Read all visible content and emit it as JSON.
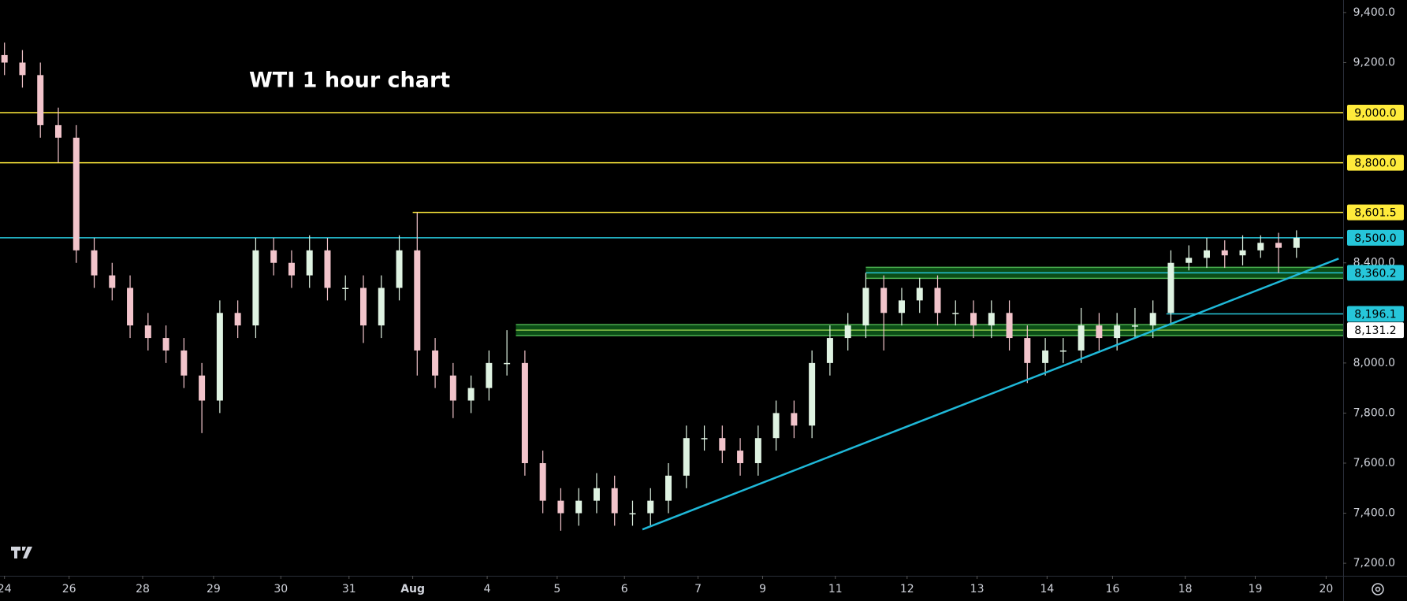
{
  "chart_data": {
    "type": "candlestick",
    "title": "WTI 1 hour chart",
    "up_color": "#dff3e2",
    "down_color": "#f2c4cb",
    "open": [
      9230,
      9200,
      9150,
      8950,
      8900,
      8450,
      8350,
      8300,
      8150,
      8100,
      8050,
      7950,
      7850,
      8200,
      8150,
      8450,
      8400,
      8350,
      8450,
      8300,
      8300,
      8150,
      8300,
      8450,
      8050,
      7950,
      7850,
      7900,
      8000,
      8000,
      7600,
      7450,
      7400,
      7450,
      7500,
      7400,
      7400,
      7450,
      7550,
      7700,
      7700,
      7650,
      7600,
      7700,
      7800,
      7750,
      8000,
      8100,
      8150,
      8300,
      8200,
      8250,
      8300,
      8200,
      8200,
      8150,
      8200,
      8100,
      8000,
      8050,
      8050,
      8150,
      8100,
      8150,
      8150,
      8200,
      8400,
      8420,
      8450,
      8430,
      8450,
      8480,
      8460
    ],
    "high": [
      9280,
      9250,
      9200,
      9020,
      8950,
      8500,
      8400,
      8350,
      8200,
      8150,
      8100,
      8000,
      8250,
      8250,
      8500,
      8500,
      8450,
      8510,
      8500,
      8350,
      8350,
      8350,
      8510,
      8601.5,
      8100,
      8000,
      7950,
      8050,
      8131.2,
      8050,
      7650,
      7500,
      7500,
      7560,
      7550,
      7450,
      7500,
      7600,
      7750,
      7750,
      7750,
      7700,
      7750,
      7850,
      7850,
      8050,
      8150,
      8200,
      8360.2,
      8350,
      8300,
      8340,
      8350,
      8250,
      8250,
      8250,
      8250,
      8150,
      8100,
      8100,
      8220,
      8200,
      8200,
      8220,
      8250,
      8450,
      8470,
      8500,
      8490,
      8510,
      8510,
      8520,
      8530
    ],
    "low": [
      9150,
      9100,
      8900,
      8800,
      8400,
      8300,
      8250,
      8100,
      8050,
      8000,
      7900,
      7720,
      7800,
      8100,
      8100,
      8350,
      8300,
      8300,
      8250,
      8250,
      8080,
      8100,
      8250,
      7950,
      7900,
      7780,
      7800,
      7850,
      7950,
      7550,
      7400,
      7330,
      7350,
      7400,
      7350,
      7350,
      7350,
      7400,
      7500,
      7650,
      7600,
      7550,
      7550,
      7650,
      7700,
      7700,
      7950,
      8050,
      8100,
      8050,
      8150,
      8200,
      8150,
      8150,
      8100,
      8100,
      8050,
      7920,
      7950,
      8000,
      8000,
      8050,
      8050,
      8100,
      8100,
      8150,
      8370,
      8380,
      8380,
      8390,
      8420,
      8360,
      8420
    ],
    "close": [
      9200,
      9150,
      8950,
      8900,
      8450,
      8350,
      8300,
      8150,
      8100,
      8050,
      7950,
      7850,
      8200,
      8150,
      8450,
      8400,
      8350,
      8450,
      8300,
      8300,
      8150,
      8300,
      8450,
      8050,
      7950,
      7850,
      7900,
      8000,
      8000,
      7600,
      7450,
      7400,
      7450,
      7500,
      7400,
      7400,
      7450,
      7550,
      7700,
      7700,
      7650,
      7600,
      7700,
      7800,
      7750,
      8000,
      8100,
      8150,
      8300,
      8200,
      8250,
      8300,
      8200,
      8200,
      8150,
      8200,
      8100,
      8000,
      8050,
      8050,
      8150,
      8100,
      8150,
      8150,
      8200,
      8400,
      8420,
      8450,
      8430,
      8450,
      8480,
      8460,
      8500
    ],
    "xlim": [
      -0.25,
      74.6
    ],
    "ylim": [
      7150,
      9450
    ],
    "xticks": [
      {
        "value": 0,
        "label": "24"
      },
      {
        "value": 3.6,
        "label": "26"
      },
      {
        "value": 7.7,
        "label": "28"
      },
      {
        "value": 11.65,
        "label": "29"
      },
      {
        "value": 15.4,
        "label": "30"
      },
      {
        "value": 19.2,
        "label": "31"
      },
      {
        "value": 22.75,
        "label": "Aug"
      },
      {
        "value": 26.9,
        "label": "4"
      },
      {
        "value": 30.8,
        "label": "5"
      },
      {
        "value": 34.55,
        "label": "6"
      },
      {
        "value": 38.65,
        "label": "7"
      },
      {
        "value": 42.25,
        "label": "9"
      },
      {
        "value": 46.3,
        "label": "11"
      },
      {
        "value": 50.3,
        "label": "12"
      },
      {
        "value": 54.2,
        "label": "13"
      },
      {
        "value": 58.1,
        "label": "14"
      },
      {
        "value": 61.75,
        "label": "16"
      },
      {
        "value": 65.8,
        "label": "18"
      },
      {
        "value": 69.7,
        "label": "19"
      },
      {
        "value": 73.65,
        "label": "20"
      }
    ],
    "yticks": [
      {
        "value": 9400,
        "label": "9,400.0"
      },
      {
        "value": 9200,
        "label": "9,200.0"
      },
      {
        "value": 8400,
        "label": "8,400.0"
      },
      {
        "value": 8000,
        "label": "8,000.0"
      },
      {
        "value": 7800,
        "label": "7,800.0"
      },
      {
        "value": 7600,
        "label": "7,600.0"
      },
      {
        "value": 7400,
        "label": "7,400.0"
      },
      {
        "value": 7200,
        "label": "7,200.0"
      }
    ],
    "levels": [
      {
        "value": 9000,
        "label": "9,000.0",
        "color": "#ffeb3b",
        "start": -0.25,
        "style": "line"
      },
      {
        "value": 8800,
        "label": "8,800.0",
        "color": "#ffeb3b",
        "start": -0.25,
        "style": "line"
      },
      {
        "value": 8601.5,
        "label": "8,601.5",
        "color": "#ffeb3b",
        "start": 22.75,
        "style": "line"
      },
      {
        "value": 8500,
        "label": "8,500.0",
        "color": "#26c6da",
        "start": -0.25,
        "style": "line"
      },
      {
        "value": 8360.2,
        "label": "8,360.2",
        "color": "#26c6da",
        "start": 48,
        "style": "band"
      },
      {
        "value": 8196.1,
        "label": "8,196.1",
        "color": "#26c6da",
        "start": 64.75,
        "style": "line"
      },
      {
        "value": 8131.2,
        "label": "8,131.2",
        "color": "#ffffff",
        "start": 28.5,
        "style": "band"
      }
    ],
    "trendline": {
      "color": "#1fb8d8",
      "x": [
        35.55,
        74.35
      ],
      "y": [
        7335,
        8417
      ]
    }
  }
}
